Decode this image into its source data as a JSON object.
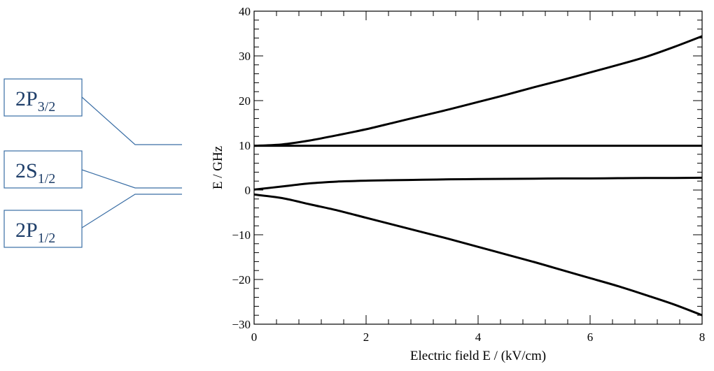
{
  "level_diagram": {
    "states": [
      {
        "name": "2P",
        "sub": "3/2"
      },
      {
        "name": "2S",
        "sub": "1/2"
      },
      {
        "name": "2P",
        "sub": "1/2"
      }
    ]
  },
  "chart_data": {
    "type": "line",
    "xlabel": "Electric field E / (kV/cm)",
    "ylabel": "E / GHz",
    "xlim": [
      0,
      8
    ],
    "ylim": [
      -30,
      40
    ],
    "xticks": [
      0,
      2,
      4,
      6,
      8
    ],
    "yticks": [
      -30,
      -20,
      -10,
      0,
      10,
      20,
      30,
      40
    ],
    "grid": false,
    "series": [
      {
        "x": [
          0,
          0.5,
          1,
          1.5,
          2,
          2.5,
          3,
          3.5,
          4,
          4.5,
          5,
          5.5,
          6,
          6.5,
          7,
          7.5,
          8
        ],
        "y": [
          9.9,
          10.2,
          11.1,
          12.3,
          13.6,
          15.1,
          16.6,
          18.1,
          19.7,
          21.3,
          23.0,
          24.6,
          26.3,
          28.0,
          29.8,
          32.0,
          34.4
        ]
      },
      {
        "x": [
          0,
          8
        ],
        "y": [
          9.9,
          9.9
        ]
      },
      {
        "x": [
          0,
          0.5,
          1,
          1.5,
          2,
          2.5,
          3,
          3.5,
          4,
          4.5,
          5,
          5.5,
          6,
          6.5,
          7,
          7.5,
          8
        ],
        "y": [
          0.1,
          0.8,
          1.5,
          1.9,
          2.1,
          2.2,
          2.3,
          2.4,
          2.45,
          2.5,
          2.55,
          2.6,
          2.6,
          2.65,
          2.7,
          2.7,
          2.75
        ]
      },
      {
        "x": [
          0,
          0.5,
          1,
          1.5,
          2,
          2.5,
          3,
          3.5,
          4,
          4.5,
          5,
          5.5,
          6,
          6.5,
          7,
          7.5,
          8
        ],
        "y": [
          -1.0,
          -1.8,
          -3.2,
          -4.6,
          -6.2,
          -7.8,
          -9.4,
          -11.0,
          -12.7,
          -14.4,
          -16.1,
          -17.9,
          -19.7,
          -21.5,
          -23.5,
          -25.6,
          -28.0
        ]
      }
    ]
  }
}
